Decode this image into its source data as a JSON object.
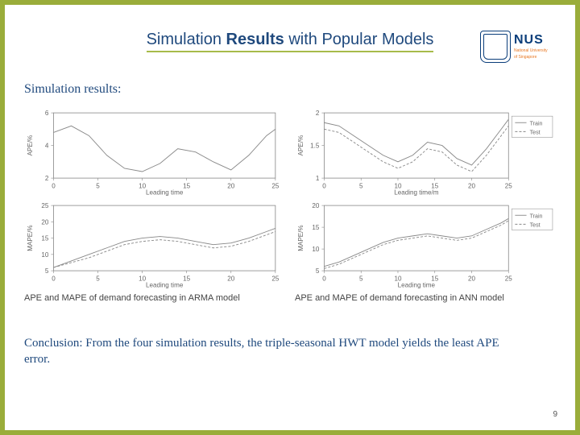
{
  "title_plain": "Simulation ",
  "title_bold": "Results",
  "title_rest": " with Popular Models",
  "subheading": "Simulation results:",
  "logo": {
    "brand": "NUS",
    "sub1": "National University",
    "sub2": "of Singapore"
  },
  "captions": {
    "left": "APE and MAPE of demand forecasting in ARMA model",
    "right": "APE and MAPE of demand forecasting in ANN model"
  },
  "conclusion": "Conclusion: From the four simulation results, the triple-seasonal HWT model yields the least APE error.",
  "pagenum": "9",
  "chart_style": {
    "line_stroke": "#888888",
    "line_width": 0.9,
    "dash_pattern": "3 2",
    "box_stroke": "#888888",
    "tick_color": "#666666",
    "bg": "#ffffff",
    "font_family": "Arial",
    "tick_fontsize": 8,
    "label_fontsize": 8
  },
  "charts": {
    "tl": {
      "type": "line",
      "ylabel": "APE/%",
      "xlabel": "Leading time",
      "xlim": [
        0,
        25
      ],
      "ylim": [
        2,
        6
      ],
      "xticks": [
        0,
        5,
        10,
        15,
        20,
        25
      ],
      "yticks": [
        2,
        4,
        6
      ],
      "series": [
        {
          "style": "solid",
          "x": [
            0,
            2,
            4,
            6,
            8,
            10,
            12,
            14,
            16,
            18,
            20,
            22,
            24,
            25
          ],
          "y": [
            4.8,
            5.2,
            4.6,
            3.4,
            2.6,
            2.4,
            2.9,
            3.8,
            3.6,
            3.0,
            2.5,
            3.4,
            4.6,
            5.0
          ]
        }
      ]
    },
    "tr": {
      "type": "line",
      "ylabel": "APE/%",
      "xlabel": "Leading time/m",
      "xlim": [
        0,
        25
      ],
      "ylim": [
        1,
        2
      ],
      "xticks": [
        0,
        5,
        10,
        15,
        20,
        25
      ],
      "yticks": [
        1,
        1.5,
        2
      ],
      "legend": [
        "Train",
        "Test"
      ],
      "series": [
        {
          "style": "solid",
          "x": [
            0,
            2,
            4,
            6,
            8,
            10,
            12,
            14,
            16,
            18,
            20,
            22,
            24,
            25
          ],
          "y": [
            1.85,
            1.8,
            1.65,
            1.5,
            1.35,
            1.25,
            1.35,
            1.55,
            1.5,
            1.3,
            1.2,
            1.45,
            1.75,
            1.9
          ]
        },
        {
          "style": "dashed",
          "x": [
            0,
            2,
            4,
            6,
            8,
            10,
            12,
            14,
            16,
            18,
            20,
            22,
            24,
            25
          ],
          "y": [
            1.75,
            1.7,
            1.55,
            1.4,
            1.25,
            1.15,
            1.25,
            1.45,
            1.4,
            1.2,
            1.1,
            1.35,
            1.65,
            1.8
          ]
        }
      ]
    },
    "bl": {
      "type": "line",
      "ylabel": "MAPE/%",
      "xlabel": "Leading time",
      "xlim": [
        0,
        25
      ],
      "ylim": [
        5,
        25
      ],
      "xticks": [
        0,
        5,
        10,
        15,
        20,
        25
      ],
      "yticks": [
        5,
        10,
        15,
        20,
        25
      ],
      "series": [
        {
          "style": "solid",
          "x": [
            0,
            2,
            4,
            6,
            8,
            10,
            12,
            14,
            16,
            18,
            20,
            22,
            24,
            25
          ],
          "y": [
            6,
            8,
            10,
            12,
            14,
            15,
            15.5,
            15,
            14,
            13,
            13.5,
            15,
            17,
            18
          ]
        },
        {
          "style": "dashed",
          "x": [
            0,
            2,
            4,
            6,
            8,
            10,
            12,
            14,
            16,
            18,
            20,
            22,
            24,
            25
          ],
          "y": [
            6,
            7.5,
            9,
            11,
            13,
            14,
            14.5,
            14,
            13,
            12,
            12.5,
            14,
            16,
            17
          ]
        }
      ]
    },
    "br": {
      "type": "line",
      "ylabel": "MAPE/%",
      "xlabel": "Leading time",
      "xlim": [
        0,
        25
      ],
      "ylim": [
        5,
        20
      ],
      "xticks": [
        0,
        5,
        10,
        15,
        20,
        25
      ],
      "yticks": [
        5,
        10,
        15,
        20
      ],
      "legend": [
        "Train",
        "Test"
      ],
      "series": [
        {
          "style": "solid",
          "x": [
            0,
            2,
            4,
            6,
            8,
            10,
            12,
            14,
            16,
            18,
            20,
            22,
            24,
            25
          ],
          "y": [
            6,
            7,
            8.5,
            10,
            11.5,
            12.5,
            13,
            13.5,
            13,
            12.5,
            13,
            14.5,
            16,
            17
          ]
        },
        {
          "style": "dashed",
          "x": [
            0,
            2,
            4,
            6,
            8,
            10,
            12,
            14,
            16,
            18,
            20,
            22,
            24,
            25
          ],
          "y": [
            5.5,
            6.5,
            8,
            9.5,
            11,
            12,
            12.5,
            13,
            12.5,
            12,
            12.5,
            14,
            15.5,
            16.5
          ]
        }
      ]
    }
  }
}
